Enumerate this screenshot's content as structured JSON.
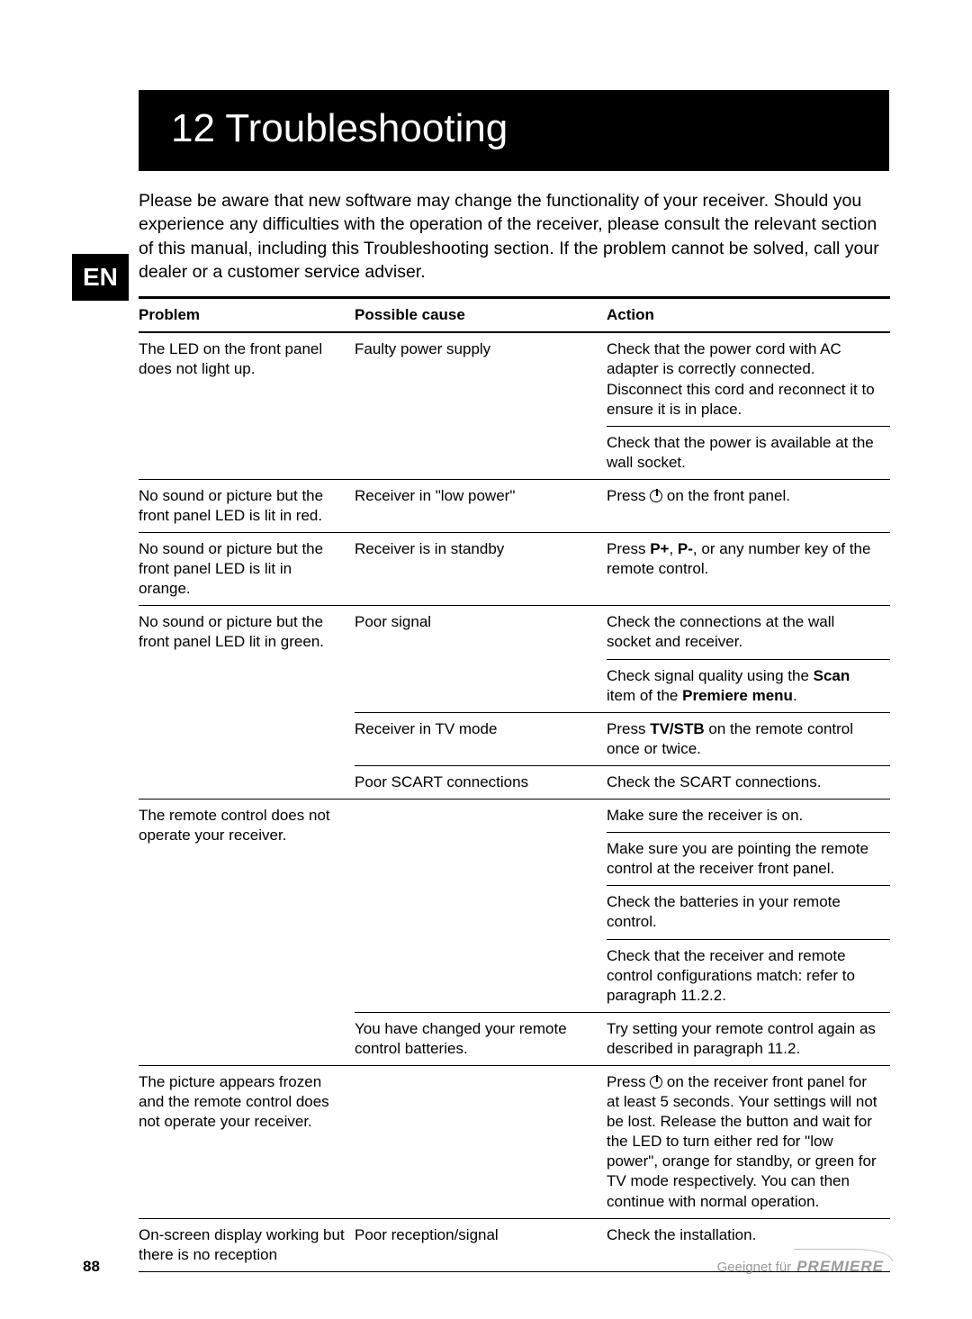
{
  "chapter_title": "12 Troubleshooting",
  "lang_tab": "EN",
  "intro": "Please be aware that new software may change the functionality of your receiver. Should you experience any difficulties with the operation of the receiver, please consult the relevant section of this manual, including this Troubleshooting section. If the problem cannot be solved, call your dealer or a customer service adviser.",
  "headers": {
    "problem": "Problem",
    "cause": "Possible cause",
    "action": "Action"
  },
  "rows": {
    "r1": {
      "problem": "The LED on the front panel does not light up.",
      "cause": "Faulty power supply",
      "action1": "Check that the power cord with AC adapter is correctly connected. Disconnect this cord and reconnect it to ensure it is in place.",
      "action2": "Check that the power is available at the wall socket."
    },
    "r2": {
      "problem": "No sound or picture but the front panel LED is lit in red.",
      "cause": "Receiver in \"low power\"",
      "action_pre": "Press ",
      "action_post": " on the front panel."
    },
    "r3": {
      "problem": "No sound or picture but the front panel LED is lit in orange.",
      "cause": "Receiver is in standby",
      "action_pre": "Press ",
      "b1": "P+",
      "mid": ", ",
      "b2": "P-",
      "action_post": ", or any number key of the remote control."
    },
    "r4": {
      "problem": "No sound or picture but the front panel LED lit in green.",
      "cause1": "Poor signal",
      "action1": "Check the connections at the wall socket and receiver.",
      "action2_pre": "Check signal quality using the ",
      "action2_b1": "Scan",
      "action2_mid": " item of the ",
      "action2_b2": "Premiere menu",
      "action2_post": ".",
      "cause2": "Receiver in TV mode",
      "action3_pre": "Press ",
      "action3_b": "TV/STB",
      "action3_post": " on the remote control once or twice.",
      "cause3": "Poor SCART connections",
      "action4": "Check the SCART connections."
    },
    "r5": {
      "problem": "The remote control does not operate your receiver.",
      "action1": "Make sure the receiver is on.",
      "action2": "Make sure you are pointing the remote control at the receiver front panel.",
      "action3": "Check the batteries in your remote control.",
      "action4": "Check that the receiver and remote control configurations match: refer to paragraph 11.2.2.",
      "cause2": "You have changed your remote control batteries.",
      "action5": "Try setting your remote control again as described in paragraph 11.2."
    },
    "r6": {
      "problem": "The picture appears frozen and the remote control does not operate your receiver.",
      "action_pre": "Press ",
      "action_post": " on the receiver front panel for at least 5 seconds. Your settings will not be lost. Release the button and wait for the LED to turn either red for \"low power\", orange for standby, or green for TV mode respectively. You can then continue with normal operation."
    },
    "r7": {
      "problem": "On-screen display working but there is no reception",
      "cause": "Poor reception/signal",
      "action": "Check the installation."
    }
  },
  "page_number": "88",
  "footer_text": "Geeignet für",
  "footer_brand": "PREMIERE"
}
